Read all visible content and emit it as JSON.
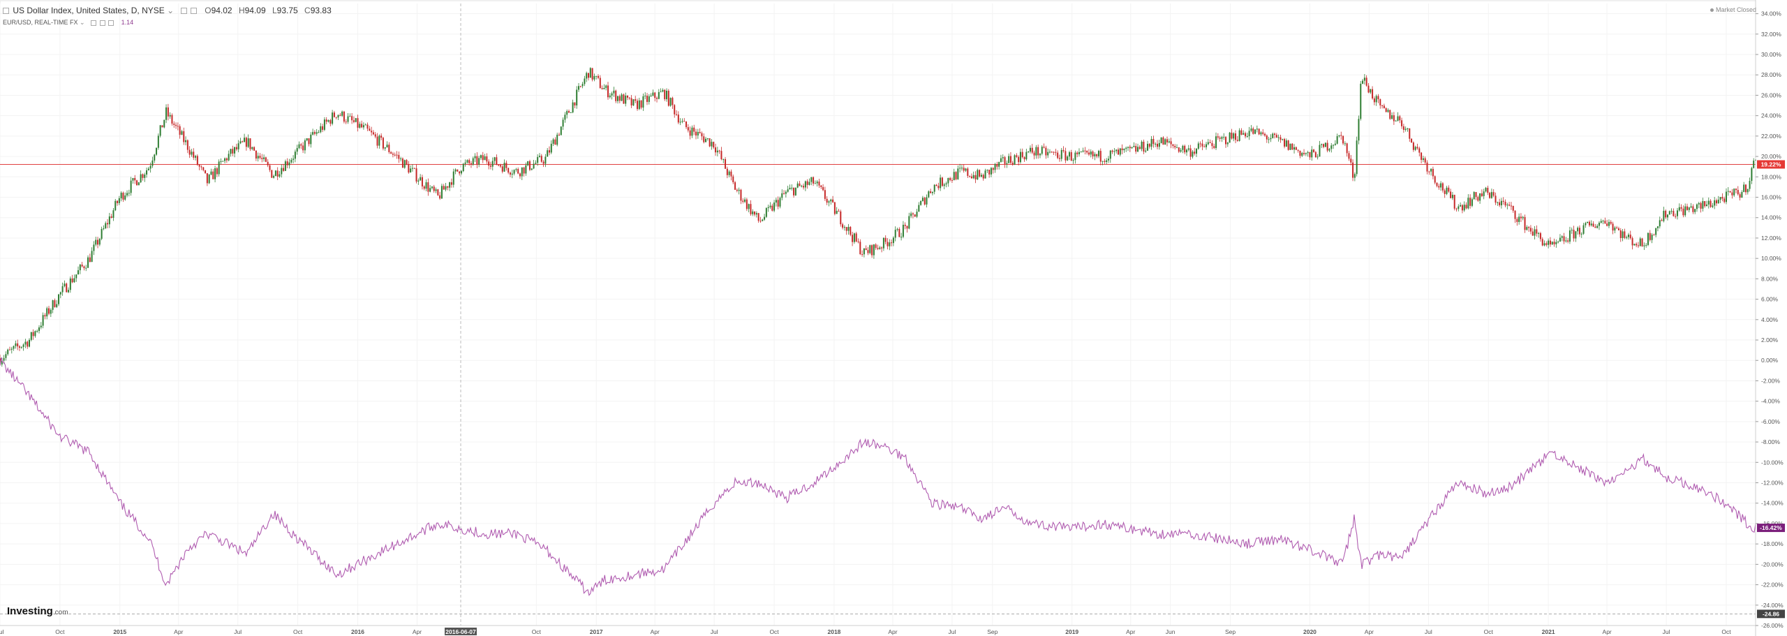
{
  "header": {
    "title": "US Dollar Index, United States, D, NYSE",
    "open_label": "O",
    "open": "94.02",
    "high_label": "H",
    "high": "94.09",
    "low_label": "L",
    "low": "93.75",
    "close_label": "C",
    "close": "93.83",
    "compare_symbol": "EUR/USD, REAL-TIME FX",
    "compare_value": "1.14"
  },
  "status": {
    "market": "Market Closed"
  },
  "branding": {
    "logo_main": "Investing",
    "logo_suffix": ".com"
  },
  "colors": {
    "up": "#2e7d32",
    "down": "#c62828",
    "compare": "#b05cb0",
    "hline": "#e04040",
    "price_badge": "#e53935",
    "compare_badge": "#7b1f7b",
    "grid": "#f3f3f3",
    "axis_text": "#555555"
  },
  "chart_data": {
    "type": "line",
    "title": "US Dollar Index, United States, D, NYSE",
    "y_scale": "percent",
    "ylim": [
      -26,
      35
    ],
    "y_ticks": [
      "34.00%",
      "32.00%",
      "30.00%",
      "28.00%",
      "26.00%",
      "24.00%",
      "22.00%",
      "20.00%",
      "18.00%",
      "16.00%",
      "14.00%",
      "12.00%",
      "10.00%",
      "8.00%",
      "6.00%",
      "4.00%",
      "2.00%",
      "0.00%",
      "-2.00%",
      "-4.00%",
      "-6.00%",
      "-8.00%",
      "-10.00%",
      "-12.00%",
      "-14.00%",
      "-16.00%",
      "-18.00%",
      "-20.00%",
      "-22.00%",
      "-24.00%",
      "-26.00%"
    ],
    "x_ticks": [
      "Jul",
      "Oct",
      "2015",
      "Apr",
      "Jul",
      "Oct",
      "2016",
      "Apr",
      "2016-06-07",
      "Oct",
      "2017",
      "Apr",
      "Jul",
      "Oct",
      "2018",
      "Apr",
      "Jul",
      "Sep",
      "2019",
      "Apr",
      "Jun",
      "Sep",
      "2020",
      "Apr",
      "Jul",
      "Oct",
      "2021",
      "Apr",
      "Jul",
      "Oct"
    ],
    "x_tick_dates": [
      "2014-07-01",
      "2014-10-01",
      "2015-01-01",
      "2015-04-01",
      "2015-07-01",
      "2015-10-01",
      "2016-01-01",
      "2016-04-01",
      "2016-06-07",
      "2016-10-01",
      "2017-01-01",
      "2017-04-01",
      "2017-07-01",
      "2017-10-01",
      "2018-01-01",
      "2018-04-01",
      "2018-07-01",
      "2018-09-01",
      "2019-01-01",
      "2019-04-01",
      "2019-06-01",
      "2019-09-01",
      "2020-01-01",
      "2020-04-01",
      "2020-07-01",
      "2020-10-01",
      "2021-01-01",
      "2021-04-01",
      "2021-07-01",
      "2021-10-01"
    ],
    "x_range": [
      "2014-07-01",
      "2021-11-15"
    ],
    "crosshair_date": "2016-06-07",
    "reference_line": 19.22,
    "bottom_marker_label": "-24.86",
    "series": [
      {
        "name": "US Dollar Index",
        "style": "candlestick",
        "dates": [
          "2014-07-01",
          "2014-08-15",
          "2014-10-01",
          "2014-11-15",
          "2015-01-01",
          "2015-02-15",
          "2015-03-13",
          "2015-04-15",
          "2015-05-15",
          "2015-06-15",
          "2015-07-15",
          "2015-08-24",
          "2015-10-01",
          "2015-11-30",
          "2016-01-15",
          "2016-03-01",
          "2016-05-03",
          "2016-06-07",
          "2016-07-15",
          "2016-09-01",
          "2016-10-15",
          "2016-12-20",
          "2017-01-15",
          "2017-03-01",
          "2017-04-15",
          "2017-05-15",
          "2017-07-01",
          "2017-08-01",
          "2017-09-08",
          "2017-10-20",
          "2017-12-01",
          "2018-01-10",
          "2018-02-15",
          "2018-03-20",
          "2018-04-20",
          "2018-06-01",
          "2018-07-15",
          "2018-08-15",
          "2018-09-20",
          "2018-11-01",
          "2019-01-01",
          "2019-02-15",
          "2019-04-01",
          "2019-05-15",
          "2019-07-01",
          "2019-08-15",
          "2019-10-01",
          "2019-11-15",
          "2020-01-01",
          "2020-02-20",
          "2020-03-09",
          "2020-03-20",
          "2020-04-20",
          "2020-05-20",
          "2020-06-10",
          "2020-07-15",
          "2020-08-15",
          "2020-09-25",
          "2020-11-01",
          "2020-12-01",
          "2021-01-06",
          "2021-02-15",
          "2021-03-31",
          "2021-05-01",
          "2021-05-25",
          "2021-07-01",
          "2021-08-20",
          "2021-09-30",
          "2021-10-25",
          "2021-11-05",
          "2021-11-12",
          "2021-11-15"
        ],
        "values": [
          0.2,
          2.0,
          6.5,
          10.0,
          16.0,
          19.0,
          24.3,
          21.0,
          17.5,
          20.0,
          21.5,
          18.2,
          20.5,
          24.3,
          22.5,
          20.0,
          16.0,
          19.0,
          19.8,
          18.5,
          19.8,
          28.3,
          26.5,
          25.0,
          26.3,
          23.0,
          21.2,
          17.0,
          13.6,
          16.5,
          17.5,
          14.0,
          10.5,
          11.5,
          13.0,
          17.0,
          18.5,
          18.0,
          19.5,
          20.5,
          20.0,
          20.0,
          20.5,
          21.5,
          20.5,
          21.5,
          22.5,
          21.5,
          20.0,
          22.0,
          17.8,
          27.9,
          24.5,
          23.5,
          21.0,
          17.5,
          15.0,
          16.5,
          15.0,
          13.0,
          11.0,
          12.7,
          13.8,
          12.0,
          11.3,
          14.5,
          15.0,
          16.0,
          16.5,
          17.5,
          19.5,
          19.22
        ],
        "last_label": "19.22%"
      },
      {
        "name": "EUR/USD",
        "style": "line",
        "dates": [
          "2014-07-01",
          "2014-08-15",
          "2014-10-01",
          "2014-11-15",
          "2015-01-01",
          "2015-02-15",
          "2015-03-13",
          "2015-04-15",
          "2015-05-15",
          "2015-06-15",
          "2015-07-15",
          "2015-08-24",
          "2015-10-01",
          "2015-11-30",
          "2016-01-15",
          "2016-03-01",
          "2016-05-03",
          "2016-06-07",
          "2016-07-15",
          "2016-09-01",
          "2016-10-15",
          "2016-12-20",
          "2017-01-15",
          "2017-03-01",
          "2017-04-15",
          "2017-05-15",
          "2017-07-01",
          "2017-08-01",
          "2017-09-08",
          "2017-10-20",
          "2017-12-01",
          "2018-01-10",
          "2018-02-15",
          "2018-03-20",
          "2018-04-20",
          "2018-06-01",
          "2018-07-15",
          "2018-08-15",
          "2018-09-20",
          "2018-11-01",
          "2019-01-01",
          "2019-02-15",
          "2019-04-01",
          "2019-05-15",
          "2019-07-01",
          "2019-08-15",
          "2019-10-01",
          "2019-11-15",
          "2020-01-01",
          "2020-02-20",
          "2020-03-09",
          "2020-03-20",
          "2020-04-20",
          "2020-05-20",
          "2020-06-10",
          "2020-07-15",
          "2020-08-15",
          "2020-09-25",
          "2020-11-01",
          "2020-12-01",
          "2021-01-06",
          "2021-02-15",
          "2021-03-31",
          "2021-05-01",
          "2021-05-25",
          "2021-07-01",
          "2021-08-20",
          "2021-09-30",
          "2021-10-25",
          "2021-11-05",
          "2021-11-12",
          "2021-11-15"
        ],
        "values": [
          0.0,
          -3.5,
          -7.5,
          -9.0,
          -14.0,
          -17.5,
          -22.0,
          -18.5,
          -17.0,
          -18.0,
          -19.0,
          -15.0,
          -17.5,
          -21.0,
          -19.5,
          -18.0,
          -16.0,
          -16.5,
          -17.0,
          -17.0,
          -18.5,
          -22.8,
          -21.5,
          -21.0,
          -20.5,
          -18.0,
          -14.0,
          -12.0,
          -12.0,
          -13.5,
          -12.0,
          -10.0,
          -8.0,
          -8.5,
          -9.5,
          -14.0,
          -14.5,
          -15.5,
          -14.5,
          -16.0,
          -16.5,
          -16.0,
          -16.5,
          -17.0,
          -17.0,
          -17.5,
          -18.0,
          -17.5,
          -18.5,
          -20.0,
          -15.5,
          -20.0,
          -19.0,
          -19.5,
          -17.5,
          -14.5,
          -12.0,
          -13.0,
          -12.5,
          -11.0,
          -9.0,
          -10.5,
          -12.0,
          -11.0,
          -9.5,
          -11.5,
          -12.5,
          -14.0,
          -15.5,
          -16.2,
          -17.0,
          -16.42
        ],
        "last_label": "-16.42%"
      }
    ]
  }
}
